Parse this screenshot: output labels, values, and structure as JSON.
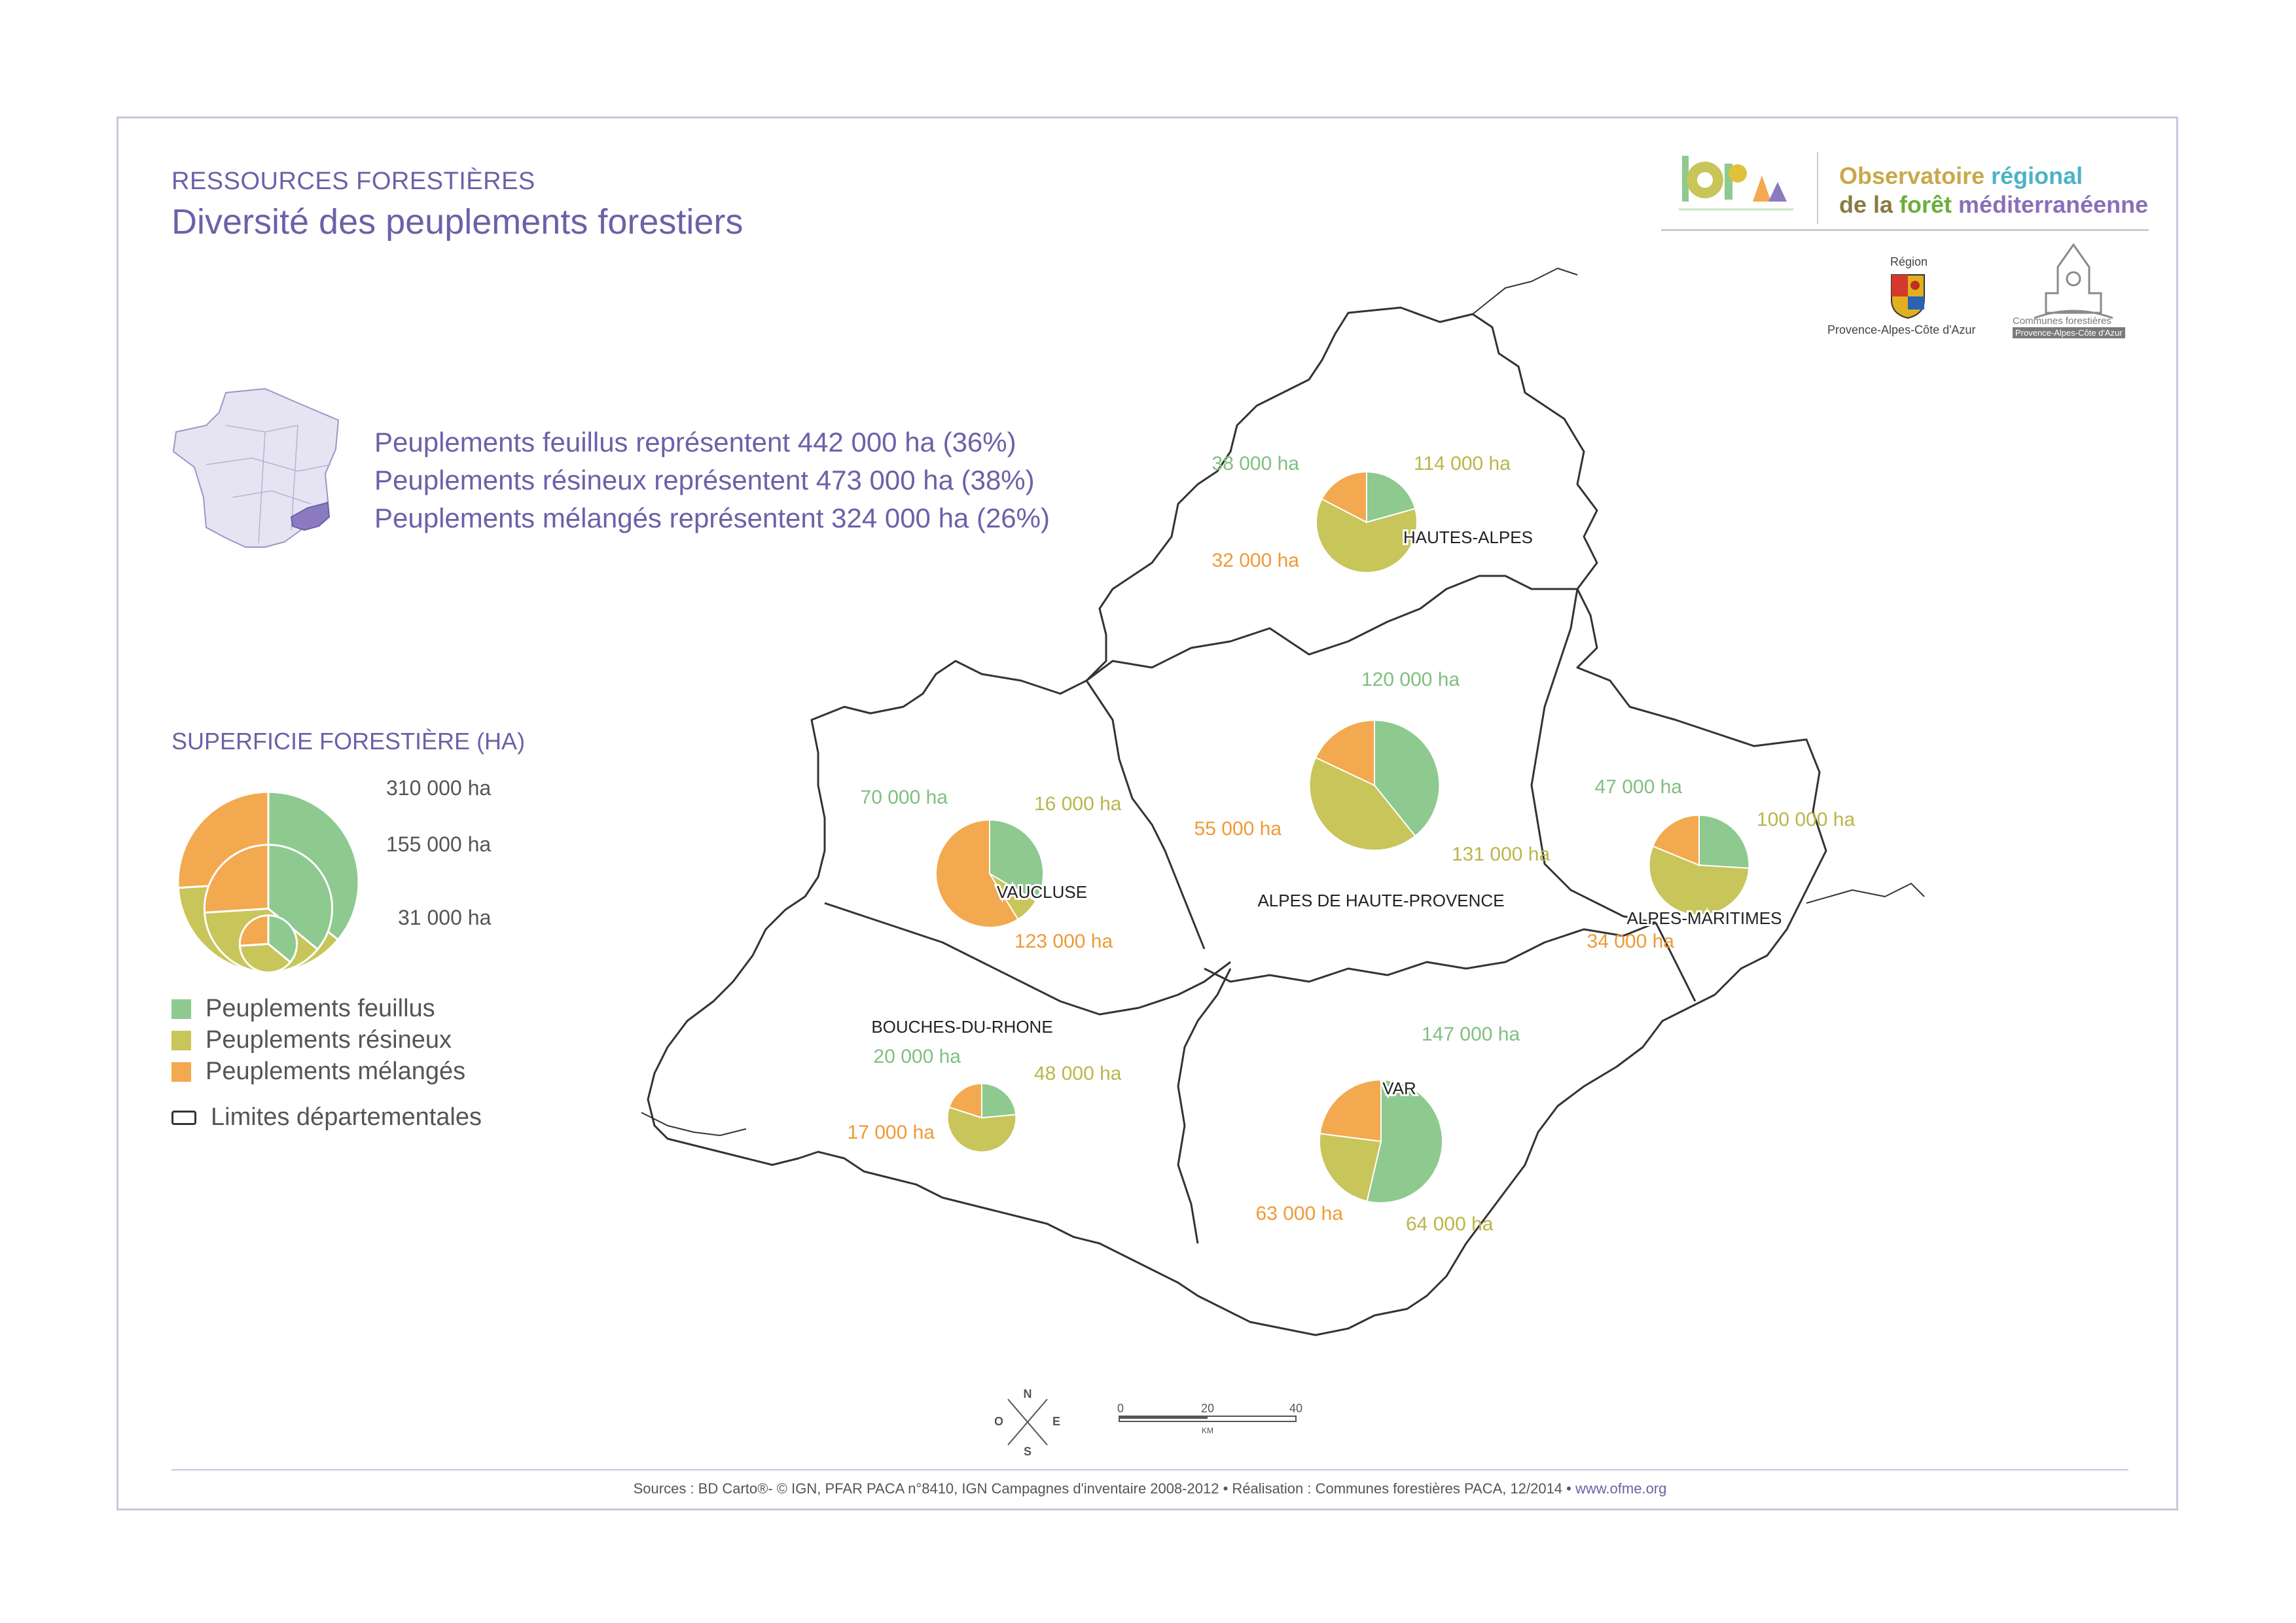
{
  "header": {
    "subtitle": "RESSOURCES FORESTIÈRES",
    "title": "Diversité des peuplements forestiers"
  },
  "stats": [
    "Peuplements feuillus représentent 442 000 ha (36%)",
    "Peuplements résineux représentent 473 000 ha (38%)",
    "Peuplements mélangés représentent 324 000 ha (26%)"
  ],
  "logos": {
    "observatoire_line1_a": "Observatoire ",
    "observatoire_line1_b": "régional",
    "observatoire_line2_a": "de la ",
    "observatoire_line2_b": "forêt",
    "observatoire_line2_c": " méditerranéenne",
    "region_top": "Région",
    "region_bottom": "Provence-Alpes-Côte d'Azur",
    "communes_line1": "Communes forestières",
    "communes_line2": "Provence-Alpes-Côte d'Azur"
  },
  "legend": {
    "size_title": "SUPERFICIE FORESTIÈRE (HA)",
    "size_labels": [
      "310 000 ha",
      "155 000 ha",
      "31 000 ha"
    ],
    "items": [
      {
        "label": "Peuplements feuillus",
        "color": "#8ec98f"
      },
      {
        "label": "Peuplements résineux",
        "color": "#c8c55a"
      },
      {
        "label": "Peuplements mélangés",
        "color": "#f3a94f"
      }
    ],
    "boundary_label": "Limites départementales"
  },
  "colors": {
    "feuillus": "#8ec98f",
    "resineux": "#c8c55a",
    "melanges": "#f3a94f",
    "accent": "#6a62a8",
    "boundary": "#333333"
  },
  "chart_data": {
    "type": "pie",
    "series_names": [
      "Peuplements feuillus",
      "Peuplements résineux",
      "Peuplements mélangés"
    ],
    "departments": [
      {
        "name": "HAUTES-ALPES",
        "values": [
          38000,
          114000,
          32000
        ],
        "labels": [
          "38 000 ha",
          "114 000 ha",
          "32 000 ha"
        ]
      },
      {
        "name": "ALPES DE HAUTE-PROVENCE",
        "values": [
          120000,
          131000,
          55000
        ],
        "labels": [
          "120 000 ha",
          "131 000 ha",
          "55 000 ha"
        ]
      },
      {
        "name": "VAUCLUSE",
        "values": [
          70000,
          16000,
          123000
        ],
        "labels": [
          "70 000 ha",
          "16 000 ha",
          "123 000 ha"
        ]
      },
      {
        "name": "ALPES-MARITIMES",
        "values": [
          47000,
          100000,
          34000
        ],
        "labels": [
          "47 000 ha",
          "100 000 ha",
          "34 000 ha"
        ]
      },
      {
        "name": "BOUCHES-DU-RHONE",
        "values": [
          20000,
          48000,
          17000
        ],
        "labels": [
          "20 000 ha",
          "48 000 ha",
          "17 000 ha"
        ]
      },
      {
        "name": "VAR",
        "values": [
          147000,
          64000,
          63000
        ],
        "labels": [
          "147 000 ha",
          "64 000 ha",
          "63 000 ha"
        ]
      }
    ]
  },
  "compass": {
    "n": "N",
    "s": "S",
    "e": "E",
    "o": "O"
  },
  "scale": {
    "ticks": [
      "0",
      "20",
      "40"
    ],
    "unit": "KM"
  },
  "footer": {
    "sources": "Sources : BD Carto®- © IGN, PFAR PACA n°8410, IGN Campagnes d'inventaire 2008-2012 • Réalisation : Communes forestières PACA, 12/2014 • ",
    "url": "www.ofme.org"
  }
}
